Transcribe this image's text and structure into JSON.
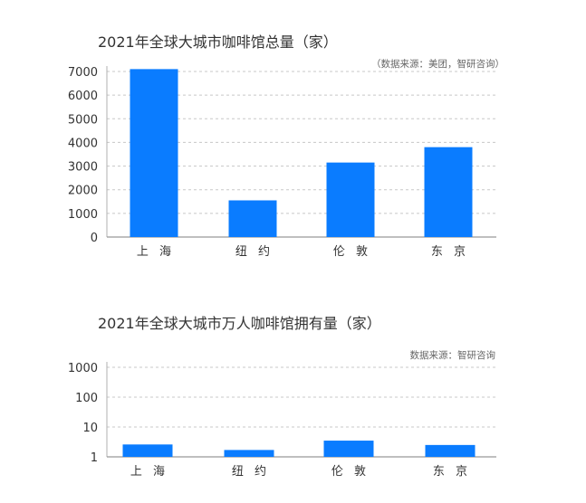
{
  "charts": [
    {
      "title": "2021年全球大城市咖啡馆总量（家）",
      "source": "（数据来源：美团，智研咨询）"
    },
    {
      "title": "2021年全球大城市万人咖啡馆拥有量（家）",
      "source": "数据来源：智研咨询"
    }
  ],
  "chart_data": [
    {
      "type": "bar",
      "title": "2021年全球大城市咖啡馆总量（家）",
      "categories": [
        "上海",
        "纽约",
        "伦敦",
        "东京"
      ],
      "values": [
        7100,
        1550,
        3150,
        3800
      ],
      "ylim": [
        0,
        7000
      ],
      "yticks": [
        "0",
        "1000",
        "2000",
        "3000",
        "4000",
        "5000",
        "6000",
        "7000"
      ],
      "scale": "linear",
      "grid": true,
      "color": "#0a7cff"
    },
    {
      "type": "bar",
      "title": "2021年全球大城市万人咖啡馆拥有量（家）",
      "categories": [
        "上海",
        "纽约",
        "伦敦",
        "东京"
      ],
      "values": [
        2.6,
        1.7,
        3.5,
        2.5
      ],
      "ylim": [
        1,
        1000
      ],
      "yticks": [
        "1",
        "10",
        "100",
        "1000"
      ],
      "scale": "log",
      "grid": true,
      "color": "#0a7cff"
    }
  ]
}
